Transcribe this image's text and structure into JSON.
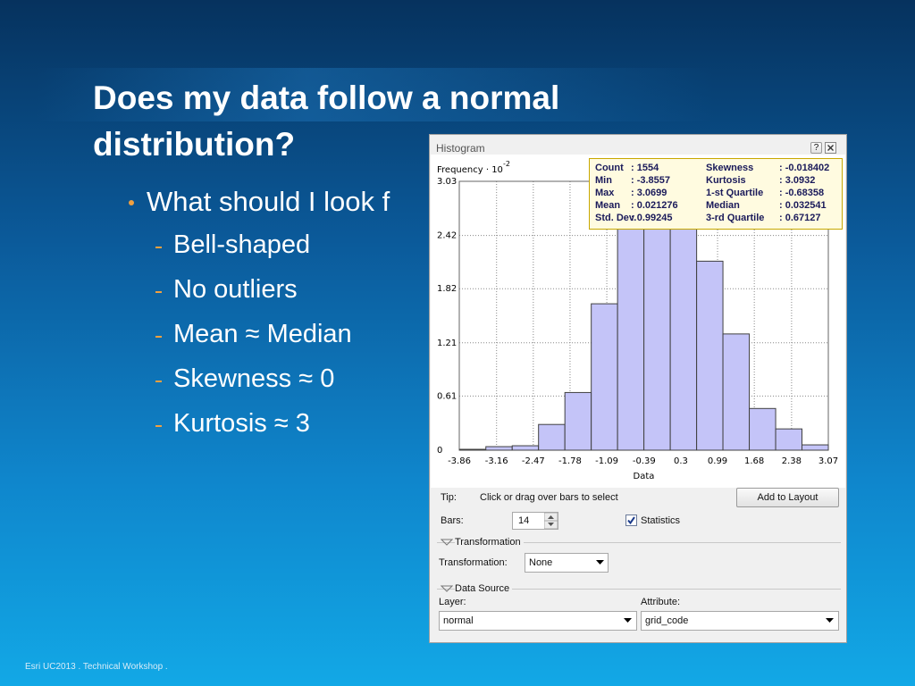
{
  "slide": {
    "title": "Does my data follow a normal distribution?",
    "bullets": [
      {
        "text": "What should I look f",
        "sub": [
          "Bell-shaped",
          "No outliers",
          "Mean ≈ Median",
          "Skewness ≈ 0",
          "Kurtosis ≈ 3"
        ]
      }
    ],
    "footer": "Esri UC2013 . Technical Workshop ."
  },
  "dialog": {
    "title": "Histogram",
    "help": "?",
    "stats": {
      "left": [
        [
          "Count",
          ": 1554"
        ],
        [
          "Min",
          ": -3.8557"
        ],
        [
          "Max",
          ": 3.0699"
        ],
        [
          "Mean",
          ": 0.021276"
        ],
        [
          "Std. Dev.",
          ": 0.99245"
        ]
      ],
      "right": [
        [
          "Skewness",
          ": -0.018402"
        ],
        [
          "Kurtosis",
          ": 3.0932"
        ],
        [
          "1-st Quartile",
          ": -0.68358"
        ],
        [
          "Median",
          ": 0.032541"
        ],
        [
          "3-rd Quartile",
          ": 0.67127"
        ]
      ]
    },
    "tip_label": "Tip:",
    "tip": "Click or drag over bars to select",
    "add_button": "Add to Layout",
    "bars_label": "Bars:",
    "bars": "14",
    "statistics": "Statistics",
    "statistics_checked": true,
    "transformation_section": "Transformation",
    "transformation_label": "Transformation:",
    "transformation": "None",
    "data_source_section": "Data Source",
    "layer_label": "Layer:",
    "layer": "normal",
    "attribute_label": "Attribute:",
    "attribute": "grid_code"
  },
  "chart_data": {
    "type": "histogram",
    "y_label": "Frequency · 10",
    "y_label_exponent": "-2",
    "x_label": "Data",
    "bins": [
      -3.856,
      -3.361,
      -2.866,
      -2.372,
      -1.877,
      -1.382,
      -0.888,
      -0.393,
      0.102,
      0.597,
      1.091,
      1.586,
      2.081,
      2.575,
      3.07
    ],
    "values": [
      0.01,
      0.04,
      0.05,
      0.29,
      0.65,
      1.65,
      2.72,
      3.12,
      2.8,
      2.13,
      1.31,
      0.47,
      0.24,
      0.06
    ],
    "color": "#c4c4f8",
    "xlim": [
      -3.86,
      3.07
    ],
    "xticks": [
      -3.86,
      -3.16,
      -2.47,
      -1.78,
      -1.09,
      -0.39,
      0.3,
      0.99,
      1.68,
      2.38,
      3.07
    ],
    "ylim": [
      0,
      3.03
    ],
    "yticks": [
      0,
      0.61,
      1.21,
      1.82,
      2.42,
      3.03
    ],
    "grid": true
  }
}
